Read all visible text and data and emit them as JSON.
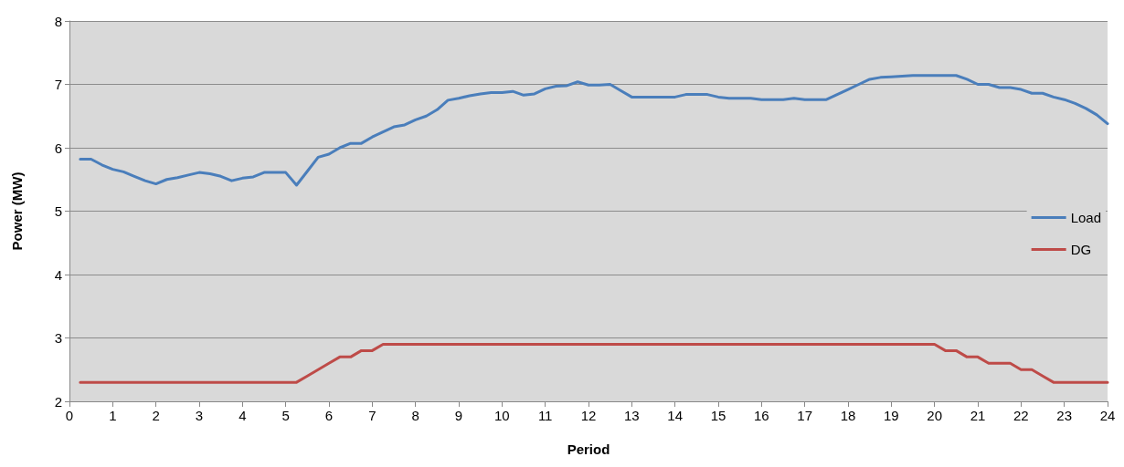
{
  "chart_data": {
    "type": "line",
    "xlabel": "Period",
    "ylabel": "Power (MW)",
    "x": [
      0.25,
      0.5,
      0.75,
      1,
      1.25,
      1.5,
      1.75,
      2,
      2.25,
      2.5,
      2.75,
      3,
      3.25,
      3.5,
      3.75,
      4,
      4.25,
      4.5,
      4.75,
      5,
      5.25,
      5.5,
      5.75,
      6,
      6.25,
      6.5,
      6.75,
      7,
      7.25,
      7.5,
      7.75,
      8,
      8.25,
      8.5,
      8.75,
      9,
      9.25,
      9.5,
      9.75,
      10,
      10.25,
      10.5,
      10.75,
      11,
      11.25,
      11.5,
      11.75,
      12,
      12.25,
      12.5,
      12.75,
      13,
      13.25,
      13.5,
      13.75,
      14,
      14.25,
      14.5,
      14.75,
      15,
      15.25,
      15.5,
      15.75,
      16,
      16.25,
      16.5,
      16.75,
      17,
      17.25,
      17.5,
      17.75,
      18,
      18.25,
      18.5,
      18.75,
      19,
      19.25,
      19.5,
      19.75,
      20,
      20.25,
      20.5,
      20.75,
      21,
      21.25,
      21.5,
      21.75,
      22,
      22.25,
      22.5,
      22.75,
      23,
      23.25,
      23.5,
      23.75,
      24
    ],
    "series": [
      {
        "name": "Load",
        "color": "#4a7ebb",
        "values": [
          5.82,
          5.82,
          5.73,
          5.66,
          5.62,
          5.55,
          5.48,
          5.43,
          5.5,
          5.53,
          5.57,
          5.61,
          5.59,
          5.55,
          5.48,
          5.52,
          5.54,
          5.61,
          5.61,
          5.61,
          5.41,
          5.63,
          5.85,
          5.9,
          6.0,
          6.07,
          6.07,
          6.17,
          6.25,
          6.33,
          6.36,
          6.44,
          6.5,
          6.6,
          6.75,
          6.78,
          6.82,
          6.85,
          6.87,
          6.87,
          6.89,
          6.83,
          6.85,
          6.93,
          6.97,
          6.98,
          7.04,
          6.99,
          6.99,
          7.0,
          6.9,
          6.8,
          6.8,
          6.8,
          6.8,
          6.8,
          6.84,
          6.84,
          6.84,
          6.8,
          6.78,
          6.78,
          6.78,
          6.76,
          6.76,
          6.76,
          6.78,
          6.76,
          6.76,
          6.76,
          6.84,
          6.92,
          7.0,
          7.08,
          7.11,
          7.12,
          7.13,
          7.14,
          7.14,
          7.14,
          7.14,
          7.14,
          7.08,
          7.0,
          7.0,
          6.95,
          6.95,
          6.92,
          6.86,
          6.86,
          6.8,
          6.76,
          6.7,
          6.62,
          6.52,
          6.38
        ]
      },
      {
        "name": "DG",
        "color": "#be4b48",
        "values": [
          2.3,
          2.3,
          2.3,
          2.3,
          2.3,
          2.3,
          2.3,
          2.3,
          2.3,
          2.3,
          2.3,
          2.3,
          2.3,
          2.3,
          2.3,
          2.3,
          2.3,
          2.3,
          2.3,
          2.3,
          2.3,
          2.4,
          2.5,
          2.6,
          2.7,
          2.7,
          2.8,
          2.8,
          2.9,
          2.9,
          2.9,
          2.9,
          2.9,
          2.9,
          2.9,
          2.9,
          2.9,
          2.9,
          2.9,
          2.9,
          2.9,
          2.9,
          2.9,
          2.9,
          2.9,
          2.9,
          2.9,
          2.9,
          2.9,
          2.9,
          2.9,
          2.9,
          2.9,
          2.9,
          2.9,
          2.9,
          2.9,
          2.9,
          2.9,
          2.9,
          2.9,
          2.9,
          2.9,
          2.9,
          2.9,
          2.9,
          2.9,
          2.9,
          2.9,
          2.9,
          2.9,
          2.9,
          2.9,
          2.9,
          2.9,
          2.9,
          2.9,
          2.9,
          2.9,
          2.9,
          2.8,
          2.8,
          2.7,
          2.7,
          2.6,
          2.6,
          2.6,
          2.5,
          2.5,
          2.4,
          2.3,
          2.3,
          2.3,
          2.3,
          2.3,
          2.3
        ]
      }
    ],
    "xlim": [
      0,
      24
    ],
    "xticks": [
      0,
      1,
      2,
      3,
      4,
      5,
      6,
      7,
      8,
      9,
      10,
      11,
      12,
      13,
      14,
      15,
      16,
      17,
      18,
      19,
      20,
      21,
      22,
      23,
      24
    ],
    "ylim": [
      2,
      8
    ],
    "yticks": [
      2,
      3,
      4,
      5,
      6,
      7,
      8
    ],
    "grid": "y",
    "legend": "right",
    "marker": "none",
    "line_style": "solid"
  }
}
